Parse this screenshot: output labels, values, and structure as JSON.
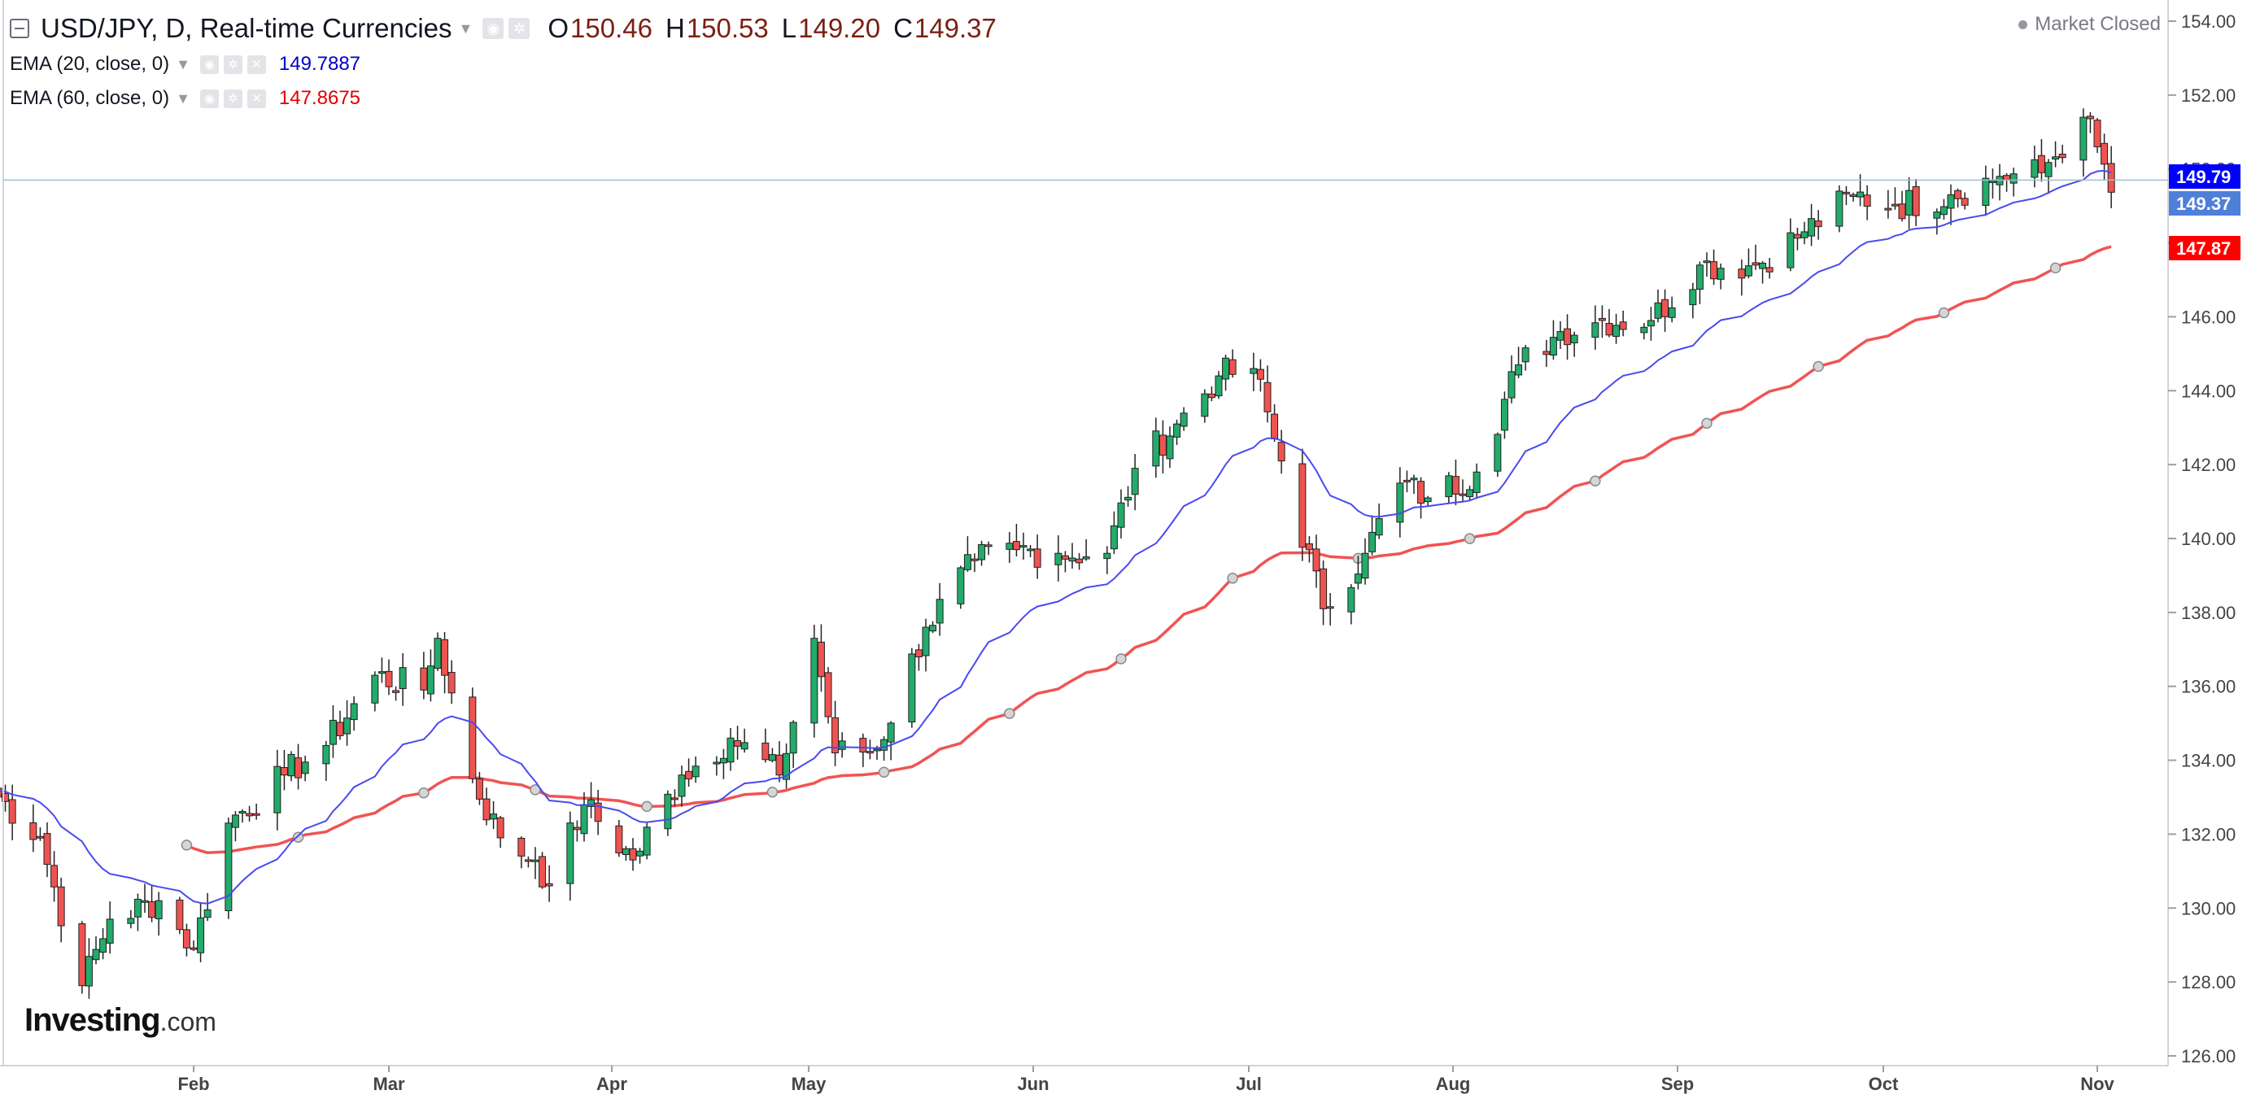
{
  "legend": {
    "symbol_title": "USD/JPY, D, Real-time Currencies",
    "open_label": "O",
    "open": "150.46",
    "high_label": "H",
    "high": "150.53",
    "low_label": "L",
    "low": "149.20",
    "close_label": "C",
    "close": "149.37",
    "ema20_label": "EMA (20, close, 0)",
    "ema20_value": "149.7887",
    "ema60_label": "EMA (60, close, 0)",
    "ema60_value": "147.8675"
  },
  "market_status": "Market Closed",
  "logo": {
    "text": "Investing",
    "suffix": ".com"
  },
  "icons": {
    "collapse": "collapse-icon",
    "dropdown": "chevron-down-icon",
    "eye": "eye-icon",
    "settings": "gear-icon",
    "close": "close-icon"
  },
  "colors": {
    "up": "#26a69a",
    "up_fill": "#22ab6a",
    "down": "#ef5350",
    "ema20": "#4a4af0",
    "ema60": "#f05454",
    "ema20_tag": "#0000ff",
    "price_tag": "#4f7fd9",
    "ema60_tag": "#ff0000",
    "price_line": "#9fbfd0",
    "grid_axis": "#d1d4dc",
    "text": "#131722"
  },
  "chart_data": {
    "type": "candlestick",
    "symbol": "USD/JPY",
    "timeframe": "D",
    "y_axis": {
      "min": 126,
      "max": 154,
      "step": 2,
      "side": "right",
      "ticks": [
        "126.00",
        "128.00",
        "130.00",
        "132.00",
        "134.00",
        "136.00",
        "138.00",
        "140.00",
        "142.00",
        "144.00",
        "146.00",
        "148.00",
        "150.00",
        "152.00",
        "154.00"
      ]
    },
    "x_axis": {
      "labels": [
        "Feb",
        "Mar",
        "Apr",
        "May",
        "Jun",
        "Jul",
        "Aug",
        "Sep",
        "Oct",
        "Nov"
      ]
    },
    "grid": false,
    "price_tags": [
      {
        "label": "149.79",
        "value": 149.79,
        "series": "EMA 20"
      },
      {
        "label": "149.37",
        "value": 149.37,
        "series": "Last close"
      },
      {
        "label": "147.87",
        "value": 147.87,
        "series": "EMA 60"
      }
    ],
    "current_price_line": 149.37,
    "anchors": [
      {
        "t": "2023-01-03",
        "v": 133.2
      },
      {
        "t": "2023-01-10",
        "v": 131.9
      },
      {
        "t": "2023-01-16",
        "v": 127.9
      },
      {
        "t": "2023-01-20",
        "v": 129.7
      },
      {
        "t": "2023-01-27",
        "v": 130.2
      },
      {
        "t": "2023-02-01",
        "v": 128.9
      },
      {
        "t": "2023-02-06",
        "v": 132.3
      },
      {
        "t": "2023-02-14",
        "v": 133.6
      },
      {
        "t": "2023-02-20",
        "v": 134.4
      },
      {
        "t": "2023-02-27",
        "v": 136.3
      },
      {
        "t": "2023-03-06",
        "v": 135.9
      },
      {
        "t": "2023-03-08",
        "v": 137.3
      },
      {
        "t": "2023-03-13",
        "v": 133.5
      },
      {
        "t": "2023-03-17",
        "v": 131.9
      },
      {
        "t": "2023-03-22",
        "v": 131.3
      },
      {
        "t": "2023-03-24",
        "v": 130.6
      },
      {
        "t": "2023-03-29",
        "v": 132.8
      },
      {
        "t": "2023-04-05",
        "v": 131.3
      },
      {
        "t": "2023-04-12",
        "v": 133.6
      },
      {
        "t": "2023-04-19",
        "v": 134.6
      },
      {
        "t": "2023-04-26",
        "v": 133.6
      },
      {
        "t": "2023-05-01",
        "v": 137.3
      },
      {
        "t": "2023-05-04",
        "v": 134.2
      },
      {
        "t": "2023-05-10",
        "v": 134.3
      },
      {
        "t": "2023-05-17",
        "v": 137.6
      },
      {
        "t": "2023-05-24",
        "v": 139.4
      },
      {
        "t": "2023-05-30",
        "v": 139.7
      },
      {
        "t": "2023-06-05",
        "v": 139.6
      },
      {
        "t": "2023-06-12",
        "v": 139.6
      },
      {
        "t": "2023-06-16",
        "v": 141.9
      },
      {
        "t": "2023-06-22",
        "v": 143.1
      },
      {
        "t": "2023-06-28",
        "v": 144.4
      },
      {
        "t": "2023-07-03",
        "v": 144.6
      },
      {
        "t": "2023-07-07",
        "v": 142.1
      },
      {
        "t": "2023-07-13",
        "v": 138.1
      },
      {
        "t": "2023-07-19",
        "v": 139.6
      },
      {
        "t": "2023-07-24",
        "v": 141.5
      },
      {
        "t": "2023-07-28",
        "v": 141.1
      },
      {
        "t": "2023-08-04",
        "v": 141.8
      },
      {
        "t": "2023-08-10",
        "v": 144.7
      },
      {
        "t": "2023-08-16",
        "v": 145.6
      },
      {
        "t": "2023-08-22",
        "v": 145.9
      },
      {
        "t": "2023-08-29",
        "v": 145.9
      },
      {
        "t": "2023-09-05",
        "v": 147.4
      },
      {
        "t": "2023-09-13",
        "v": 147.4
      },
      {
        "t": "2023-09-20",
        "v": 148.3
      },
      {
        "t": "2023-09-27",
        "v": 149.3
      },
      {
        "t": "2023-10-03",
        "v": 149.0
      },
      {
        "t": "2023-10-11",
        "v": 149.3
      },
      {
        "t": "2023-10-18",
        "v": 149.8
      },
      {
        "t": "2023-10-24",
        "v": 149.9
      },
      {
        "t": "2023-10-30",
        "v": 151.4
      },
      {
        "t": "2023-11-01",
        "v": 150.6
      },
      {
        "t": "2023-11-03",
        "v": 149.37
      }
    ],
    "series": [
      {
        "name": "EMA (20, close, 0)",
        "type": "line",
        "color": "#4a4af0"
      },
      {
        "name": "EMA (60, close, 0)",
        "type": "line",
        "color": "#f05454"
      }
    ]
  }
}
